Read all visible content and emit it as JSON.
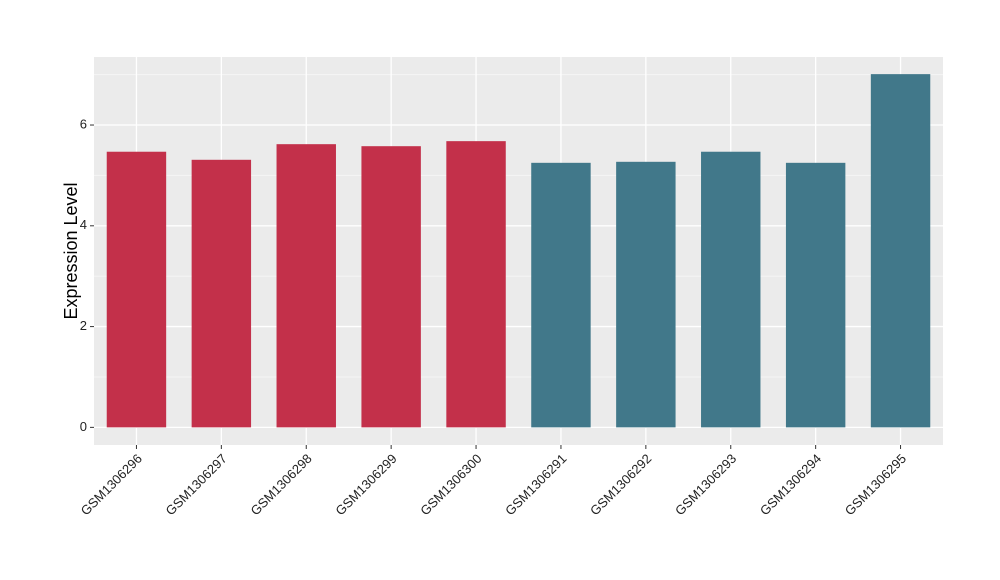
{
  "chart_data": {
    "type": "bar",
    "y_label": "Expression Level",
    "categories": [
      "GSM1306296",
      "GSM1306297",
      "GSM1306298",
      "GSM1306299",
      "GSM1306300",
      "GSM1306291",
      "GSM1306292",
      "GSM1306293",
      "GSM1306294",
      "GSM1306295"
    ],
    "values": [
      5.47,
      5.31,
      5.62,
      5.58,
      5.68,
      5.25,
      5.27,
      5.47,
      5.25,
      7.01
    ],
    "colors": [
      "#c3304a",
      "#c3304a",
      "#c3304a",
      "#c3304a",
      "#c3304a",
      "#41788a",
      "#41788a",
      "#41788a",
      "#41788a",
      "#41788a"
    ],
    "ylim": [
      -0.35,
      7.35
    ],
    "yticks": [
      0,
      2,
      4,
      6
    ],
    "grid": true
  }
}
